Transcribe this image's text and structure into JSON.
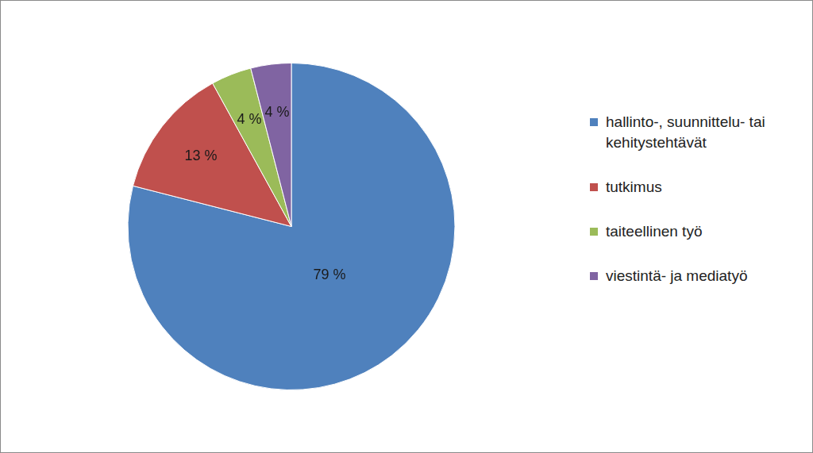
{
  "chart_data": {
    "type": "pie",
    "categories": [
      "hallinto-, suunnittelu- tai kehitystehtävät",
      "tutkimus",
      "taiteellinen työ",
      "viestintä- ja mediatyö"
    ],
    "values": [
      79,
      13,
      4,
      4
    ],
    "value_labels": [
      "79 %",
      "13 %",
      "4 %",
      "4 %"
    ],
    "colors": [
      "#4f81bd",
      "#c0504d",
      "#9bbb59",
      "#8064a2"
    ],
    "legend": "right",
    "data_labels": true
  }
}
